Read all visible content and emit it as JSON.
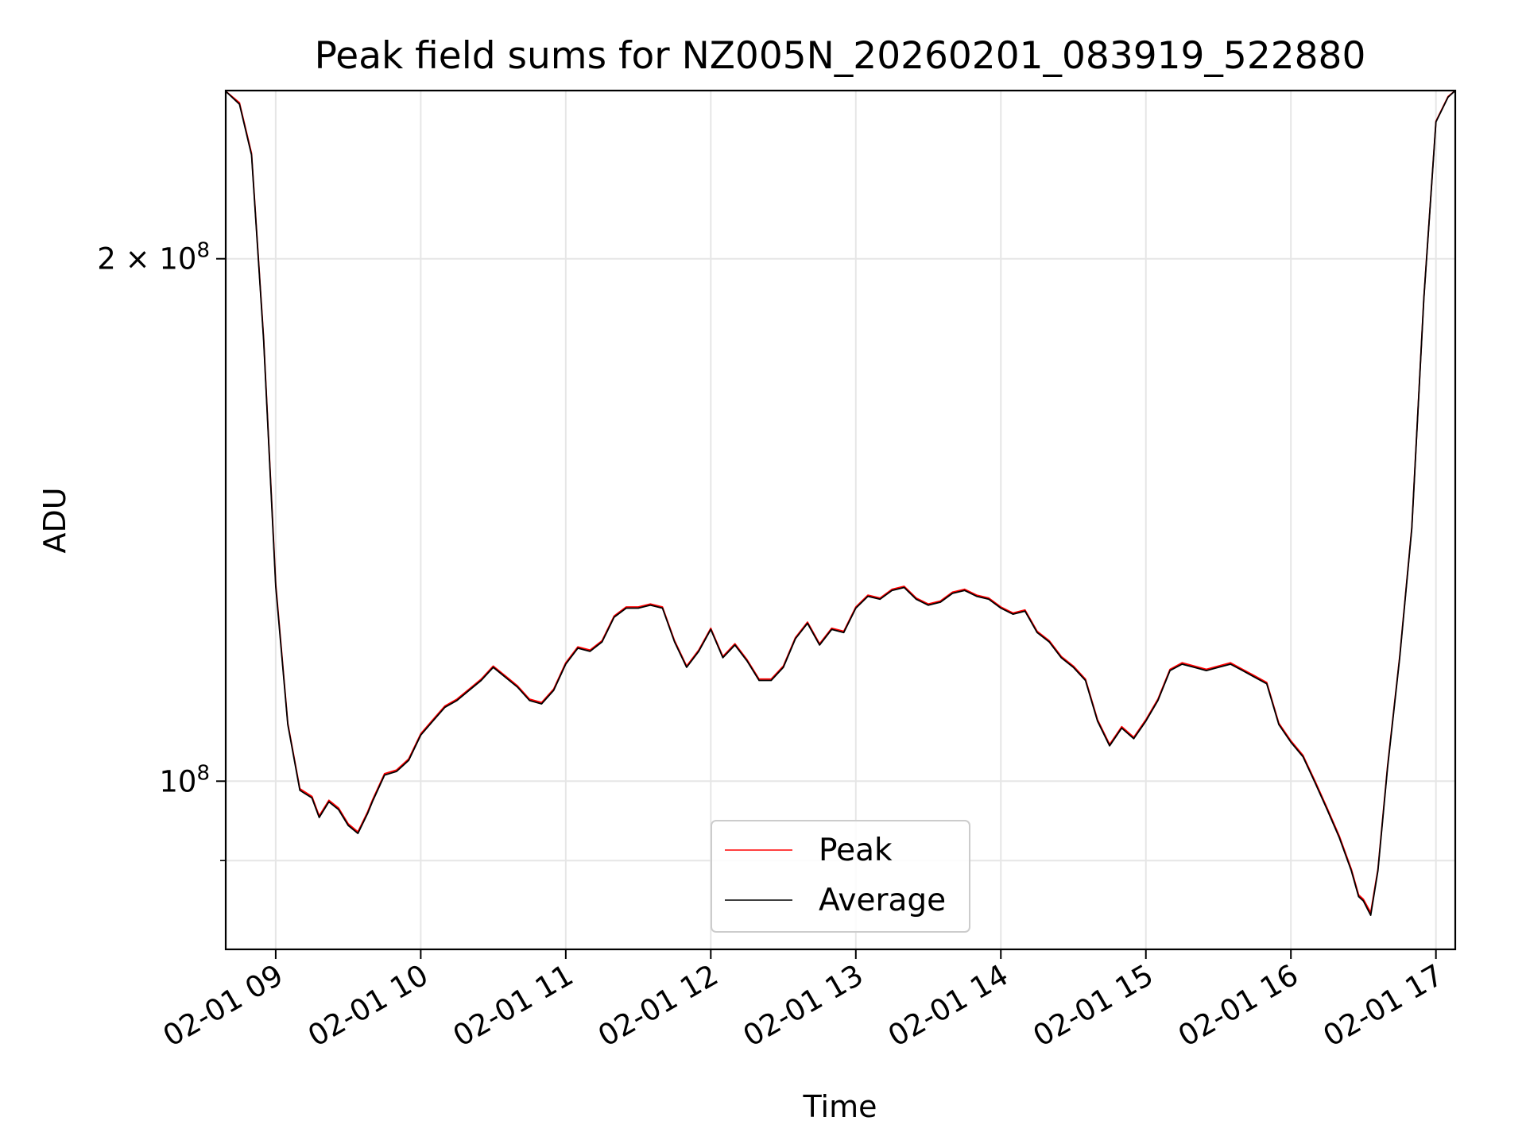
{
  "chart_data": {
    "type": "line",
    "title": "Peak field sums for NZ005N_20260201_083919_522880",
    "xlabel": "Time",
    "ylabel": "ADU",
    "yscale": "log",
    "xlim": [
      "02-01 08:39:19",
      "02-01 17:08:00"
    ],
    "ylim": [
      80000000.0,
      250000000
    ],
    "grid": true,
    "legend_position": "lower center",
    "x_ticks": [
      "02-01 09",
      "02-01 10",
      "02-01 11",
      "02-01 12",
      "02-01 13",
      "02-01 14",
      "02-01 15",
      "02-01 16",
      "02-01 17"
    ],
    "y_major_ticks": [
      {
        "value": 100000000,
        "label": "10^8"
      },
      {
        "value": 200000000,
        "label": "2 × 10^8"
      }
    ],
    "y_minor_ticks": [
      90000000
    ],
    "colors": {
      "Peak": "#ff0000",
      "Average": "#000000"
    },
    "series": [
      {
        "name": "Peak",
        "x": [
          "02-01 08:39",
          "02-01 08:45",
          "02-01 08:50",
          "02-01 08:55",
          "02-01 09:00",
          "02-01 09:05",
          "02-01 09:10",
          "02-01 09:15",
          "02-01 09:18",
          "02-01 09:22",
          "02-01 09:26",
          "02-01 09:30",
          "02-01 09:34",
          "02-01 09:38",
          "02-01 09:40",
          "02-01 09:45",
          "02-01 09:50",
          "02-01 09:55",
          "02-01 10:00",
          "02-01 10:05",
          "02-01 10:10",
          "02-01 10:15",
          "02-01 10:20",
          "02-01 10:25",
          "02-01 10:30",
          "02-01 10:35",
          "02-01 10:40",
          "02-01 10:45",
          "02-01 10:50",
          "02-01 10:55",
          "02-01 11:00",
          "02-01 11:05",
          "02-01 11:10",
          "02-01 11:15",
          "02-01 11:20",
          "02-01 11:25",
          "02-01 11:30",
          "02-01 11:35",
          "02-01 11:40",
          "02-01 11:45",
          "02-01 11:50",
          "02-01 11:55",
          "02-01 12:00",
          "02-01 12:05",
          "02-01 12:10",
          "02-01 12:15",
          "02-01 12:20",
          "02-01 12:25",
          "02-01 12:30",
          "02-01 12:35",
          "02-01 12:40",
          "02-01 12:45",
          "02-01 12:50",
          "02-01 12:55",
          "02-01 13:00",
          "02-01 13:05",
          "02-01 13:10",
          "02-01 13:15",
          "02-01 13:20",
          "02-01 13:25",
          "02-01 13:30",
          "02-01 13:35",
          "02-01 13:40",
          "02-01 13:45",
          "02-01 13:50",
          "02-01 13:55",
          "02-01 14:00",
          "02-01 14:05",
          "02-01 14:10",
          "02-01 14:15",
          "02-01 14:20",
          "02-01 14:25",
          "02-01 14:30",
          "02-01 14:35",
          "02-01 14:40",
          "02-01 14:45",
          "02-01 14:50",
          "02-01 14:55",
          "02-01 15:00",
          "02-01 15:05",
          "02-01 15:10",
          "02-01 15:15",
          "02-01 15:20",
          "02-01 15:25",
          "02-01 15:30",
          "02-01 15:35",
          "02-01 15:40",
          "02-01 15:45",
          "02-01 15:50",
          "02-01 15:55",
          "02-01 16:00",
          "02-01 16:05",
          "02-01 16:10",
          "02-01 16:15",
          "02-01 16:20",
          "02-01 16:25",
          "02-01 16:28",
          "02-01 16:30",
          "02-01 16:33",
          "02-01 16:36",
          "02-01 16:40",
          "02-01 16:45",
          "02-01 16:50",
          "02-01 16:55",
          "02-01 17:00",
          "02-01 17:05",
          "02-01 17:08"
        ],
        "y": [
          250000000,
          246000000,
          230000000,
          180000000,
          130000000,
          108000000,
          99000000,
          98000000,
          95500000,
          97500000,
          96500000,
          94500000,
          93500000,
          96000000,
          97500000,
          101000000,
          101500000,
          103000000,
          106500000,
          108500000,
          110500000,
          111500000,
          113000000,
          114500000,
          116500000,
          115000000,
          113500000,
          111500000,
          111000000,
          113000000,
          117000000,
          119500000,
          119000000,
          120500000,
          124500000,
          126000000,
          126000000,
          126500000,
          126000000,
          120500000,
          116500000,
          119000000,
          122500000,
          118000000,
          120000000,
          117500000,
          114500000,
          114500000,
          116500000,
          121000000,
          123500000,
          120000000,
          122500000,
          122000000,
          126000000,
          128000000,
          127500000,
          129000000,
          129500000,
          127500000,
          126500000,
          127000000,
          128500000,
          129000000,
          128000000,
          127500000,
          126000000,
          125000000,
          125500000,
          122000000,
          120500000,
          118000000,
          116500000,
          114500000,
          108500000,
          105000000,
          107500000,
          106000000,
          108500000,
          111500000,
          116000000,
          117000000,
          116500000,
          116000000,
          116500000,
          117000000,
          116000000,
          115000000,
          114000000,
          108000000,
          105500000,
          103500000,
          100000000,
          96500000,
          93000000,
          89000000,
          86000000,
          85500000,
          84000000,
          89000000,
          102000000,
          118000000,
          140000000,
          190000000,
          240000000,
          248000000,
          250000000
        ]
      },
      {
        "name": "Average",
        "x": [
          "02-01 08:39",
          "02-01 08:45",
          "02-01 08:50",
          "02-01 08:55",
          "02-01 09:00",
          "02-01 09:05",
          "02-01 09:10",
          "02-01 09:15",
          "02-01 09:18",
          "02-01 09:22",
          "02-01 09:26",
          "02-01 09:30",
          "02-01 09:34",
          "02-01 09:38",
          "02-01 09:40",
          "02-01 09:45",
          "02-01 09:50",
          "02-01 09:55",
          "02-01 10:00",
          "02-01 10:05",
          "02-01 10:10",
          "02-01 10:15",
          "02-01 10:20",
          "02-01 10:25",
          "02-01 10:30",
          "02-01 10:35",
          "02-01 10:40",
          "02-01 10:45",
          "02-01 10:50",
          "02-01 10:55",
          "02-01 11:00",
          "02-01 11:05",
          "02-01 11:10",
          "02-01 11:15",
          "02-01 11:20",
          "02-01 11:25",
          "02-01 11:30",
          "02-01 11:35",
          "02-01 11:40",
          "02-01 11:45",
          "02-01 11:50",
          "02-01 11:55",
          "02-01 12:00",
          "02-01 12:05",
          "02-01 12:10",
          "02-01 12:15",
          "02-01 12:20",
          "02-01 12:25",
          "02-01 12:30",
          "02-01 12:35",
          "02-01 12:40",
          "02-01 12:45",
          "02-01 12:50",
          "02-01 12:55",
          "02-01 13:00",
          "02-01 13:05",
          "02-01 13:10",
          "02-01 13:15",
          "02-01 13:20",
          "02-01 13:25",
          "02-01 13:30",
          "02-01 13:35",
          "02-01 13:40",
          "02-01 13:45",
          "02-01 13:50",
          "02-01 13:55",
          "02-01 14:00",
          "02-01 14:05",
          "02-01 14:10",
          "02-01 14:15",
          "02-01 14:20",
          "02-01 14:25",
          "02-01 14:30",
          "02-01 14:35",
          "02-01 14:40",
          "02-01 14:45",
          "02-01 14:50",
          "02-01 14:55",
          "02-01 15:00",
          "02-01 15:05",
          "02-01 15:10",
          "02-01 15:15",
          "02-01 15:20",
          "02-01 15:25",
          "02-01 15:30",
          "02-01 15:35",
          "02-01 15:40",
          "02-01 15:45",
          "02-01 15:50",
          "02-01 15:55",
          "02-01 16:00",
          "02-01 16:05",
          "02-01 16:10",
          "02-01 16:15",
          "02-01 16:20",
          "02-01 16:25",
          "02-01 16:28",
          "02-01 16:30",
          "02-01 16:33",
          "02-01 16:36",
          "02-01 16:40",
          "02-01 16:45",
          "02-01 16:50",
          "02-01 16:55",
          "02-01 17:00",
          "02-01 17:05",
          "02-01 17:08"
        ],
        "y": [
          250000000,
          245500000,
          229500000,
          179500000,
          129500000,
          107800000,
          98800000,
          97800000,
          95300000,
          97300000,
          96300000,
          94300000,
          93300000,
          95800000,
          97300000,
          100800000,
          101300000,
          102800000,
          106300000,
          108300000,
          110300000,
          111300000,
          112800000,
          114300000,
          116300000,
          114800000,
          113300000,
          111300000,
          110800000,
          112800000,
          116800000,
          119300000,
          118800000,
          120300000,
          124300000,
          125800000,
          125800000,
          126300000,
          125800000,
          120300000,
          116300000,
          118800000,
          122300000,
          117800000,
          119800000,
          117300000,
          114300000,
          114300000,
          116300000,
          120800000,
          123300000,
          119800000,
          122300000,
          121800000,
          125800000,
          127800000,
          127300000,
          128800000,
          129300000,
          127300000,
          126300000,
          126800000,
          128300000,
          128800000,
          127800000,
          127300000,
          125800000,
          124800000,
          125300000,
          121800000,
          120300000,
          117800000,
          116300000,
          114300000,
          108300000,
          104800000,
          107300000,
          105800000,
          108300000,
          111300000,
          115800000,
          116800000,
          116300000,
          115800000,
          116300000,
          116800000,
          115800000,
          114800000,
          113800000,
          107800000,
          105300000,
          103300000,
          99800000,
          96300000,
          92800000,
          88800000,
          85800000,
          85300000,
          83700000,
          88800000,
          101800000,
          117800000,
          139800000,
          189800000,
          239800000,
          247800000,
          250000000
        ]
      }
    ]
  }
}
